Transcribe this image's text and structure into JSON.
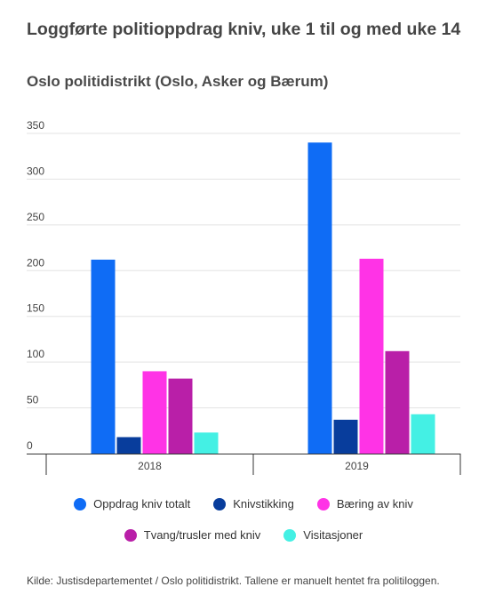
{
  "title": "Loggførte politioppdrag kniv, uke 1 til og med uke 14",
  "subtitle": "Oslo politidistrikt (Oslo, Asker og Bærum)",
  "source": "Kilde: Justisdepartementet / Oslo politidistrikt. Tallene er manuelt hentet fra politiloggen.",
  "chart_data": {
    "type": "bar",
    "categories": [
      "2018",
      "2019"
    ],
    "series": [
      {
        "name": "Oppdrag kniv totalt",
        "color": "#0f6cf5",
        "values": [
          212,
          340
        ]
      },
      {
        "name": "Knivstikking",
        "color": "#083d9c",
        "values": [
          18,
          37
        ]
      },
      {
        "name": "Bæring av kniv",
        "color": "#ff33e6",
        "values": [
          90,
          213
        ]
      },
      {
        "name": "Tvang/trusler med kniv",
        "color": "#b91fa8",
        "values": [
          82,
          112
        ]
      },
      {
        "name": "Visitasjoner",
        "color": "#44f0e4",
        "values": [
          23,
          43
        ]
      }
    ],
    "yticks": [
      0,
      50,
      100,
      150,
      200,
      250,
      300,
      350
    ],
    "ylim": [
      0,
      350
    ],
    "grid": true,
    "legend_position": "bottom"
  }
}
